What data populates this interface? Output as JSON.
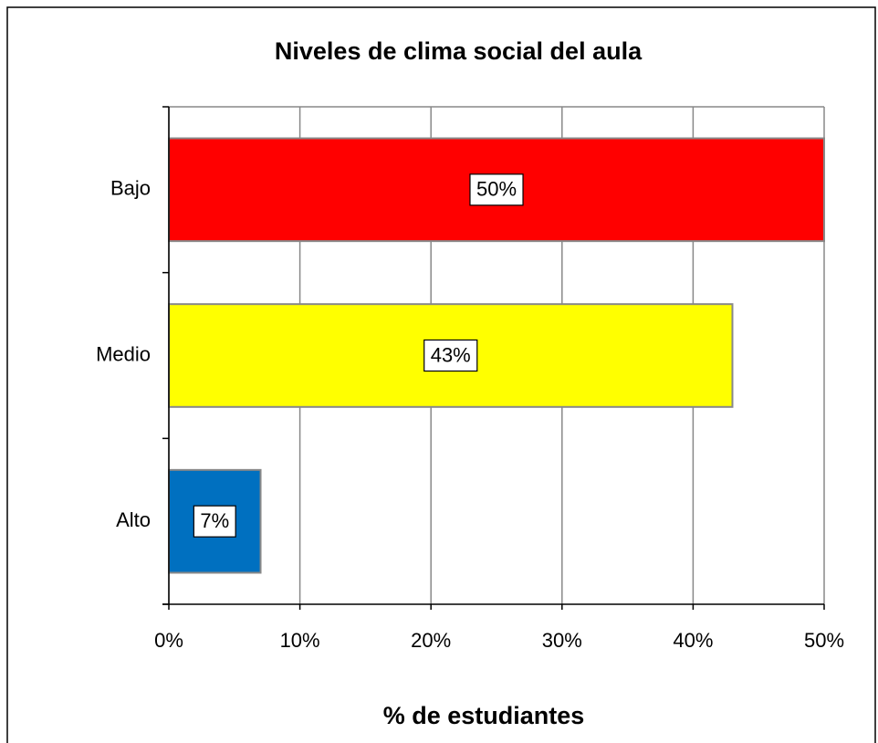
{
  "chart_data": {
    "type": "hbar",
    "title": "Niveles de clima social del aula",
    "x_label": "%  de estudiantes",
    "categories": [
      "Bajo",
      "Medio",
      "Alto"
    ],
    "values": [
      50,
      43,
      7
    ],
    "value_labels": [
      "50%",
      "43%",
      "7%"
    ],
    "colors": [
      "#ff0000",
      "#ffff00",
      "#0070c0"
    ],
    "xlim": [
      0,
      50
    ],
    "xticks": [
      {
        "value": 0,
        "label": "0%"
      },
      {
        "value": 10,
        "label": "10%"
      },
      {
        "value": 20,
        "label": "20%"
      },
      {
        "value": 30,
        "label": "30%"
      },
      {
        "value": 40,
        "label": "40%"
      },
      {
        "value": 50,
        "label": "50%"
      }
    ],
    "grid": true
  }
}
